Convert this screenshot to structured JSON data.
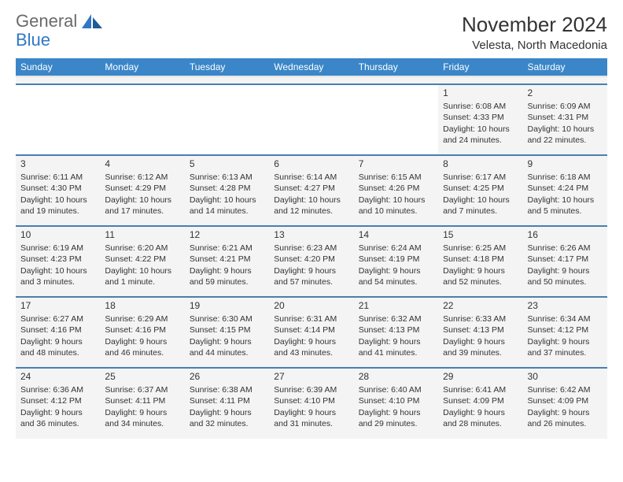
{
  "logo": {
    "word1": "General",
    "word2": "Blue"
  },
  "title": "November 2024",
  "location": "Velesta, North Macedonia",
  "colors": {
    "header_bg": "#3a86c8",
    "row_border": "#4a7fb0",
    "cell_bg": "#f4f4f4",
    "logo_blue": "#2f78c4",
    "logo_gray": "#6a6a6a"
  },
  "day_headers": [
    "Sunday",
    "Monday",
    "Tuesday",
    "Wednesday",
    "Thursday",
    "Friday",
    "Saturday"
  ],
  "weeks": [
    [
      {
        "empty": true
      },
      {
        "empty": true
      },
      {
        "empty": true
      },
      {
        "empty": true
      },
      {
        "empty": true
      },
      {
        "day": "1",
        "sunrise": "Sunrise: 6:08 AM",
        "sunset": "Sunset: 4:33 PM",
        "daylight1": "Daylight: 10 hours",
        "daylight2": "and 24 minutes."
      },
      {
        "day": "2",
        "sunrise": "Sunrise: 6:09 AM",
        "sunset": "Sunset: 4:31 PM",
        "daylight1": "Daylight: 10 hours",
        "daylight2": "and 22 minutes."
      }
    ],
    [
      {
        "day": "3",
        "sunrise": "Sunrise: 6:11 AM",
        "sunset": "Sunset: 4:30 PM",
        "daylight1": "Daylight: 10 hours",
        "daylight2": "and 19 minutes."
      },
      {
        "day": "4",
        "sunrise": "Sunrise: 6:12 AM",
        "sunset": "Sunset: 4:29 PM",
        "daylight1": "Daylight: 10 hours",
        "daylight2": "and 17 minutes."
      },
      {
        "day": "5",
        "sunrise": "Sunrise: 6:13 AM",
        "sunset": "Sunset: 4:28 PM",
        "daylight1": "Daylight: 10 hours",
        "daylight2": "and 14 minutes."
      },
      {
        "day": "6",
        "sunrise": "Sunrise: 6:14 AM",
        "sunset": "Sunset: 4:27 PM",
        "daylight1": "Daylight: 10 hours",
        "daylight2": "and 12 minutes."
      },
      {
        "day": "7",
        "sunrise": "Sunrise: 6:15 AM",
        "sunset": "Sunset: 4:26 PM",
        "daylight1": "Daylight: 10 hours",
        "daylight2": "and 10 minutes."
      },
      {
        "day": "8",
        "sunrise": "Sunrise: 6:17 AM",
        "sunset": "Sunset: 4:25 PM",
        "daylight1": "Daylight: 10 hours",
        "daylight2": "and 7 minutes."
      },
      {
        "day": "9",
        "sunrise": "Sunrise: 6:18 AM",
        "sunset": "Sunset: 4:24 PM",
        "daylight1": "Daylight: 10 hours",
        "daylight2": "and 5 minutes."
      }
    ],
    [
      {
        "day": "10",
        "sunrise": "Sunrise: 6:19 AM",
        "sunset": "Sunset: 4:23 PM",
        "daylight1": "Daylight: 10 hours",
        "daylight2": "and 3 minutes."
      },
      {
        "day": "11",
        "sunrise": "Sunrise: 6:20 AM",
        "sunset": "Sunset: 4:22 PM",
        "daylight1": "Daylight: 10 hours",
        "daylight2": "and 1 minute."
      },
      {
        "day": "12",
        "sunrise": "Sunrise: 6:21 AM",
        "sunset": "Sunset: 4:21 PM",
        "daylight1": "Daylight: 9 hours",
        "daylight2": "and 59 minutes."
      },
      {
        "day": "13",
        "sunrise": "Sunrise: 6:23 AM",
        "sunset": "Sunset: 4:20 PM",
        "daylight1": "Daylight: 9 hours",
        "daylight2": "and 57 minutes."
      },
      {
        "day": "14",
        "sunrise": "Sunrise: 6:24 AM",
        "sunset": "Sunset: 4:19 PM",
        "daylight1": "Daylight: 9 hours",
        "daylight2": "and 54 minutes."
      },
      {
        "day": "15",
        "sunrise": "Sunrise: 6:25 AM",
        "sunset": "Sunset: 4:18 PM",
        "daylight1": "Daylight: 9 hours",
        "daylight2": "and 52 minutes."
      },
      {
        "day": "16",
        "sunrise": "Sunrise: 6:26 AM",
        "sunset": "Sunset: 4:17 PM",
        "daylight1": "Daylight: 9 hours",
        "daylight2": "and 50 minutes."
      }
    ],
    [
      {
        "day": "17",
        "sunrise": "Sunrise: 6:27 AM",
        "sunset": "Sunset: 4:16 PM",
        "daylight1": "Daylight: 9 hours",
        "daylight2": "and 48 minutes."
      },
      {
        "day": "18",
        "sunrise": "Sunrise: 6:29 AM",
        "sunset": "Sunset: 4:16 PM",
        "daylight1": "Daylight: 9 hours",
        "daylight2": "and 46 minutes."
      },
      {
        "day": "19",
        "sunrise": "Sunrise: 6:30 AM",
        "sunset": "Sunset: 4:15 PM",
        "daylight1": "Daylight: 9 hours",
        "daylight2": "and 44 minutes."
      },
      {
        "day": "20",
        "sunrise": "Sunrise: 6:31 AM",
        "sunset": "Sunset: 4:14 PM",
        "daylight1": "Daylight: 9 hours",
        "daylight2": "and 43 minutes."
      },
      {
        "day": "21",
        "sunrise": "Sunrise: 6:32 AM",
        "sunset": "Sunset: 4:13 PM",
        "daylight1": "Daylight: 9 hours",
        "daylight2": "and 41 minutes."
      },
      {
        "day": "22",
        "sunrise": "Sunrise: 6:33 AM",
        "sunset": "Sunset: 4:13 PM",
        "daylight1": "Daylight: 9 hours",
        "daylight2": "and 39 minutes."
      },
      {
        "day": "23",
        "sunrise": "Sunrise: 6:34 AM",
        "sunset": "Sunset: 4:12 PM",
        "daylight1": "Daylight: 9 hours",
        "daylight2": "and 37 minutes."
      }
    ],
    [
      {
        "day": "24",
        "sunrise": "Sunrise: 6:36 AM",
        "sunset": "Sunset: 4:12 PM",
        "daylight1": "Daylight: 9 hours",
        "daylight2": "and 36 minutes."
      },
      {
        "day": "25",
        "sunrise": "Sunrise: 6:37 AM",
        "sunset": "Sunset: 4:11 PM",
        "daylight1": "Daylight: 9 hours",
        "daylight2": "and 34 minutes."
      },
      {
        "day": "26",
        "sunrise": "Sunrise: 6:38 AM",
        "sunset": "Sunset: 4:11 PM",
        "daylight1": "Daylight: 9 hours",
        "daylight2": "and 32 minutes."
      },
      {
        "day": "27",
        "sunrise": "Sunrise: 6:39 AM",
        "sunset": "Sunset: 4:10 PM",
        "daylight1": "Daylight: 9 hours",
        "daylight2": "and 31 minutes."
      },
      {
        "day": "28",
        "sunrise": "Sunrise: 6:40 AM",
        "sunset": "Sunset: 4:10 PM",
        "daylight1": "Daylight: 9 hours",
        "daylight2": "and 29 minutes."
      },
      {
        "day": "29",
        "sunrise": "Sunrise: 6:41 AM",
        "sunset": "Sunset: 4:09 PM",
        "daylight1": "Daylight: 9 hours",
        "daylight2": "and 28 minutes."
      },
      {
        "day": "30",
        "sunrise": "Sunrise: 6:42 AM",
        "sunset": "Sunset: 4:09 PM",
        "daylight1": "Daylight: 9 hours",
        "daylight2": "and 26 minutes."
      }
    ]
  ]
}
